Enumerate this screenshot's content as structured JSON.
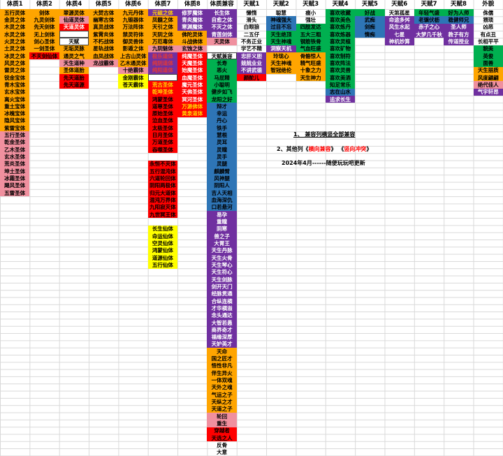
{
  "palette": {
    "o": {
      "bg": "#FFA500",
      "fg": "#000000"
    },
    "p": {
      "bg": "#F0909F",
      "fg": "#000000"
    },
    "r": {
      "bg": "#FF0000",
      "fg": "#000000"
    },
    "rw": {
      "bg": "#FF0000",
      "fg": "#FFFFFF"
    },
    "ry": {
      "bg": "#FF0000",
      "fg": "#FFD400"
    },
    "pu": {
      "bg": "#7030A0",
      "fg": "#FFFFFF"
    },
    "puy": {
      "bg": "#7030A0",
      "fg": "#FFD400"
    },
    "pur": {
      "bg": "#7030A0",
      "fg": "#E53935"
    },
    "b": {
      "bg": "#2E75B6",
      "fg": "#000000"
    },
    "g": {
      "bg": "#00B050",
      "fg": "#000000"
    },
    "y": {
      "bg": "#FFFF00",
      "fg": "#000000"
    },
    "pl": {
      "bg": "",
      "fg": "#000000"
    },
    "bx": {
      "bg": "#FFFFFF",
      "fg": "#000000",
      "border": "#404040"
    }
  },
  "grid_color": "#D9D9D9",
  "columns": [
    {
      "header": "体质1",
      "cells": [
        [
          0,
          "五行灵体",
          "o"
        ],
        [
          1,
          "金灵之体",
          "o"
        ],
        [
          2,
          "木灵之体",
          "o"
        ],
        [
          3,
          "水灵之体",
          "o"
        ],
        [
          4,
          "火灵之体",
          "o"
        ],
        [
          5,
          "土灵之体",
          "o"
        ],
        [
          6,
          "冰灵之体",
          "o"
        ],
        [
          7,
          "风灵之体",
          "o"
        ],
        [
          8,
          "雷灵之体",
          "o"
        ],
        [
          9,
          "锐金宝体",
          "o"
        ],
        [
          10,
          "青木宝体",
          "o"
        ],
        [
          11,
          "玄水宝体",
          "o"
        ],
        [
          12,
          "离火宝体",
          "o"
        ],
        [
          13,
          "重土宝体",
          "o"
        ],
        [
          14,
          "冰魄宝体",
          "o"
        ],
        [
          15,
          "隐风宝体",
          "o"
        ],
        [
          16,
          "紫雷宝体",
          "o"
        ],
        [
          17,
          "五行圣体",
          "p"
        ],
        [
          18,
          "乾金圣体",
          "p"
        ],
        [
          19,
          "乙木圣体",
          "p"
        ],
        [
          20,
          "玄水圣体",
          "p"
        ],
        [
          21,
          "荒炎圣体",
          "p"
        ],
        [
          22,
          "坤土圣体",
          "p"
        ],
        [
          23,
          "冰霜圣体",
          "p"
        ],
        [
          24,
          "飓风圣体",
          "p"
        ],
        [
          25,
          "五雷圣体",
          "p"
        ]
      ]
    },
    {
      "header": "体质2",
      "cells": [
        [
          0,
          "剑体",
          "o"
        ],
        [
          1,
          "九灵剑体",
          "o"
        ],
        [
          2,
          "先天剑体",
          "o"
        ],
        [
          3,
          "无上剑体",
          "o"
        ],
        [
          4,
          "剑心圣体",
          "o"
        ],
        [
          5,
          "一剑圣体",
          "o"
        ],
        [
          6,
          "不灭剑仙体",
          "r"
        ]
      ]
    },
    {
      "header": "体质4",
      "cells": [
        [
          0,
          "翠源灵体",
          "o"
        ],
        [
          1,
          "仙道灵体",
          "p"
        ],
        [
          2,
          "天道灵体",
          "rw"
        ],
        [
          3,
          "",
          "bx"
        ],
        [
          4,
          "天赋",
          "bx"
        ],
        [
          5,
          "无垢灵脉",
          "o"
        ],
        [
          6,
          "通灵之气",
          "o"
        ],
        [
          7,
          "天生道种",
          "p"
        ],
        [
          8,
          "圣体道胎",
          "o"
        ],
        [
          9,
          "先天道胎",
          "r"
        ],
        [
          10,
          "先天道源",
          "r"
        ]
      ]
    },
    {
      "header": "体质5",
      "cells": [
        [
          0,
          "大焚古体",
          "o"
        ],
        [
          1,
          "幽寒古体",
          "o"
        ],
        [
          2,
          "真灵战体",
          "o"
        ],
        [
          3,
          "紫霄炎体",
          "o"
        ],
        [
          4,
          "不朽战体",
          "o"
        ],
        [
          5,
          "星轨战体",
          "o"
        ],
        [
          6,
          "血凤战体",
          "o"
        ],
        [
          7,
          "龙战霸体",
          "p"
        ]
      ]
    },
    {
      "header": "体质6",
      "cells": [
        [
          0,
          "九元丹体",
          "o"
        ],
        [
          1,
          "九锻器体",
          "o"
        ],
        [
          2,
          "万法阵体",
          "o"
        ],
        [
          3,
          "禁灵符体",
          "o"
        ],
        [
          4,
          "御灵兽体",
          "o"
        ],
        [
          5,
          "影遁之体",
          "o"
        ],
        [
          6,
          "上古山灵体",
          "o"
        ],
        [
          7,
          "乙木通灵体",
          "o"
        ],
        [
          8,
          "十绝霸体",
          "p"
        ],
        [
          9,
          "金刚霸体",
          "y"
        ],
        [
          10,
          "苍天霸体",
          "y"
        ]
      ]
    },
    {
      "header": "体质7",
      "cells": [
        [
          0,
          "元磁之体",
          "puy"
        ],
        [
          1,
          "凤髓之体",
          "o"
        ],
        [
          2,
          "天引之体",
          "o"
        ],
        [
          3,
          "天阴之体",
          "o"
        ],
        [
          4,
          "万厄毒体",
          "o"
        ],
        [
          5,
          "九阴魅体",
          "p"
        ],
        [
          6,
          "极乐道体",
          "pur"
        ],
        [
          7,
          "纯阴道体",
          "pur"
        ],
        [
          8,
          "纯阳道体",
          "pur"
        ],
        [
          9,
          "",
          "bx"
        ],
        [
          10,
          "荒古圣体",
          "ry"
        ],
        [
          11,
          "乾坤圣体",
          "ry"
        ],
        [
          12,
          "鸿蒙圣体",
          "r"
        ],
        [
          13,
          "道尊圣体",
          "r"
        ],
        [
          14,
          "原始圣体",
          "r"
        ],
        [
          15,
          "泣血圣体",
          "r"
        ],
        [
          16,
          "太极圣体",
          "r"
        ],
        [
          17,
          "日月圣体",
          "r"
        ],
        [
          18,
          "万道圣体",
          "r"
        ],
        [
          19,
          "吞噬圣体",
          "r"
        ],
        [
          21,
          "永恒不灭体",
          "r"
        ],
        [
          22,
          "五行混沌体",
          "r"
        ],
        [
          23,
          "六道轮回体",
          "r"
        ],
        [
          24,
          "阴阳两极体",
          "r"
        ],
        [
          25,
          "归元大道体",
          "r"
        ],
        [
          26,
          "混沌万界体",
          "r"
        ],
        [
          27,
          "九阳寂灭体",
          "r"
        ],
        [
          28,
          "九世冥王体",
          "r"
        ],
        [
          30,
          "长生仙体",
          "y"
        ],
        [
          31,
          "命运仙体",
          "y"
        ],
        [
          32,
          "空灵仙体",
          "y"
        ],
        [
          33,
          "鸿蒙仙体",
          "y"
        ],
        [
          34,
          "道源仙体",
          "y"
        ],
        [
          35,
          "五行仙体",
          "y"
        ]
      ]
    },
    {
      "header": "体质8",
      "cells": [
        [
          0,
          "修罗魔体",
          "pu"
        ],
        [
          1,
          "青炎魔体",
          "pu"
        ],
        [
          2,
          "寒渊魔体",
          "pu"
        ],
        [
          3,
          "佛陀灵体",
          "o"
        ],
        [
          4,
          "斗战佛体",
          "o"
        ],
        [
          5,
          "玄蚀之体",
          "p"
        ],
        [
          6,
          "纯魔圣体",
          "rw"
        ],
        [
          7,
          "天魔圣体",
          "rw"
        ],
        [
          8,
          "始魔圣体",
          "rw"
        ],
        [
          9,
          "血魔圣体",
          "rw"
        ],
        [
          10,
          "魔元圣体",
          "rw"
        ],
        [
          11,
          "天佛圣体",
          "rw"
        ],
        [
          12,
          "冥河圣体",
          "rw"
        ],
        [
          13,
          "万源佛体",
          "ry"
        ],
        [
          14,
          "黄泉道体",
          "ry"
        ]
      ]
    },
    {
      "header": "体质兼容",
      "cells": [
        [
          0,
          "长生体",
          "pu"
        ],
        [
          1,
          "自愈之体",
          "pu"
        ],
        [
          2,
          "不灭之体",
          "pu"
        ],
        [
          3,
          "青莲剑体",
          "pu"
        ],
        [
          4,
          "天灵体",
          "p"
        ],
        [
          6,
          "天赋兼容",
          "bx"
        ],
        [
          7,
          "长寿",
          "g"
        ],
        [
          8,
          "恶火",
          "g"
        ],
        [
          9,
          "马屁精",
          "g"
        ],
        [
          10,
          "小聪明",
          "g"
        ],
        [
          11,
          "健步如飞",
          "g"
        ],
        [
          12,
          "龙阳之好",
          "g"
        ],
        [
          13,
          "辩才",
          "b"
        ],
        [
          14,
          "幸运",
          "b"
        ],
        [
          15,
          "丹心",
          "b"
        ],
        [
          16,
          "铁手",
          "b"
        ],
        [
          17,
          "慧根",
          "b"
        ],
        [
          18,
          "灵耳",
          "b"
        ],
        [
          19,
          "灵瞳",
          "b"
        ],
        [
          20,
          "灵手",
          "b"
        ],
        [
          21,
          "灵腿",
          "b"
        ],
        [
          22,
          "麒麟臂",
          "b"
        ],
        [
          23,
          "风神腿",
          "b"
        ],
        [
          24,
          "阴阳人",
          "b"
        ],
        [
          25,
          "吉人天相",
          "b"
        ],
        [
          26,
          "血海深仇",
          "b"
        ],
        [
          27,
          "口若悬河",
          "b"
        ],
        [
          28,
          "易孕",
          "pu"
        ],
        [
          29,
          "重瞳",
          "pu"
        ],
        [
          30,
          "阴寒",
          "pu"
        ],
        [
          31,
          "兽之子",
          "pu"
        ],
        [
          32,
          "大胃王",
          "pu"
        ],
        [
          33,
          "天生丹脉",
          "pu"
        ],
        [
          34,
          "天生火骨",
          "pu"
        ],
        [
          35,
          "天生琴心",
          "pu"
        ],
        [
          36,
          "天生符心",
          "pu"
        ],
        [
          37,
          "天生剑脉",
          "pu"
        ],
        [
          38,
          "剑开天门",
          "pu"
        ],
        [
          39,
          "经脉贯通",
          "pu"
        ],
        [
          40,
          "合纵连横",
          "pu"
        ],
        [
          41,
          "才华横溢",
          "pu"
        ],
        [
          42,
          "念头通达",
          "pu"
        ],
        [
          43,
          "大智若愚",
          "pu"
        ],
        [
          44,
          "商界奇才",
          "pu"
        ],
        [
          45,
          "福缘深厚",
          "pu"
        ],
        [
          46,
          "天妒英才",
          "pu"
        ],
        [
          47,
          "天命",
          "o"
        ],
        [
          48,
          "国之匠才",
          "o"
        ],
        [
          49,
          "悟性非凡",
          "o"
        ],
        [
          50,
          "伴生异火",
          "o"
        ],
        [
          51,
          "一体双魂",
          "o"
        ],
        [
          52,
          "天外之魂",
          "o"
        ],
        [
          53,
          "气运之子",
          "o"
        ],
        [
          54,
          "天纵之才",
          "o"
        ],
        [
          55,
          "天道之子",
          "o"
        ],
        [
          56,
          "轮回",
          "p"
        ],
        [
          57,
          "重生",
          "p"
        ],
        [
          58,
          "穿越者",
          "r"
        ],
        [
          59,
          "天选之人",
          "r"
        ],
        [
          60,
          "反骨",
          "pl"
        ],
        [
          61,
          "大意",
          "pl"
        ]
      ]
    },
    {
      "header": "天赋1",
      "cells": [
        [
          0,
          "懒惰",
          "pl"
        ],
        [
          1,
          "滑头",
          "pl"
        ],
        [
          2,
          "白眼狼",
          "pl"
        ],
        [
          3,
          "二五仔",
          "pl"
        ],
        [
          4,
          "不务正业",
          "pl"
        ],
        [
          5,
          "学艺不精",
          "pl"
        ],
        [
          6,
          "忠肝义胆",
          "pu"
        ],
        [
          7,
          "兢兢业业",
          "pu"
        ],
        [
          8,
          "不讲武德",
          "pu"
        ],
        [
          9,
          "颜酡儿",
          "r"
        ]
      ]
    },
    {
      "header": "天赋2",
      "cells": [
        [
          0,
          "聪慧",
          "pl"
        ],
        [
          1,
          "神魂强大",
          "b"
        ],
        [
          2,
          "过目不忘",
          "b"
        ],
        [
          3,
          "天生绝顶",
          "g"
        ],
        [
          4,
          "天生神魂",
          "g"
        ],
        [
          5,
          "洞察天机",
          "pu"
        ],
        [
          6,
          "玲珑心",
          "o"
        ],
        [
          7,
          "天生神魂",
          "o"
        ],
        [
          8,
          "智冠绝伦",
          "o"
        ]
      ]
    },
    {
      "header": "天赋3",
      "cells": [
        [
          0,
          "瘦小",
          "pl"
        ],
        [
          1,
          "强壮",
          "pl"
        ],
        [
          2,
          "四肢发达",
          "g"
        ],
        [
          3,
          "五大三粗",
          "g"
        ],
        [
          4,
          "钢筋铁骨",
          "g"
        ],
        [
          5,
          "气血旺盛",
          "g"
        ],
        [
          6,
          "骨骼惊人",
          "o"
        ],
        [
          7,
          "精气旺盛",
          "o"
        ],
        [
          8,
          "十象之力",
          "o"
        ],
        [
          9,
          "天生神力",
          "o"
        ]
      ]
    },
    {
      "header": "天赋4",
      "cells": [
        [
          0,
          "喜欢收藏",
          "g"
        ],
        [
          1,
          "喜欢美色",
          "g"
        ],
        [
          2,
          "喜欢炼丹",
          "g"
        ],
        [
          3,
          "喜欢炼器",
          "g"
        ],
        [
          4,
          "喜欢灵植",
          "g"
        ],
        [
          5,
          "喜欢矿物",
          "g"
        ],
        [
          6,
          "喜欢制符",
          "g"
        ],
        [
          7,
          "喜欢阵法",
          "g"
        ],
        [
          8,
          "喜欢灵兽",
          "g"
        ],
        [
          9,
          "喜欢美酒",
          "g"
        ],
        [
          10,
          "知足常乐",
          "g"
        ],
        [
          11,
          "志在山水",
          "b"
        ],
        [
          12,
          "追求长生",
          "pu"
        ]
      ]
    },
    {
      "header": "天赋5",
      "cells": [
        [
          0,
          "好战",
          "g"
        ],
        [
          1,
          "武痴",
          "b"
        ],
        [
          2,
          "剑痴",
          "b"
        ],
        [
          3,
          "情痴",
          "b"
        ]
      ]
    },
    {
      "header": "天赋6",
      "cells": [
        [
          0,
          "天煞孤星",
          "pl"
        ],
        [
          1,
          "命途多舛",
          "pu"
        ],
        [
          2,
          "风生水起",
          "pu"
        ],
        [
          3,
          "七星",
          "pu"
        ],
        [
          4,
          "神机妙算",
          "pu"
        ]
      ]
    },
    {
      "header": "天赋7",
      "cells": [
        [
          0,
          "年轻气盛",
          "g"
        ],
        [
          1,
          "老骥伏枥",
          "b"
        ],
        [
          2,
          "赤子之心",
          "pu"
        ],
        [
          3,
          "大梦几千秋",
          "pu"
        ]
      ]
    },
    {
      "header": "天赋8",
      "cells": [
        [
          0,
          "好为人师",
          "g"
        ],
        [
          1,
          "稳健师兄",
          "b"
        ],
        [
          2,
          "圣人师",
          "pu"
        ],
        [
          3,
          "教子有方",
          "pu"
        ],
        [
          4,
          "传道授业",
          "pu"
        ]
      ]
    },
    {
      "header": "外貌",
      "cells": [
        [
          0,
          "侏儒",
          "pl"
        ],
        [
          1,
          "猥琐",
          "pl"
        ],
        [
          2,
          "凶恶",
          "pl"
        ],
        [
          3,
          "有点丑",
          "pl"
        ],
        [
          4,
          "长相平平",
          "pl"
        ],
        [
          5,
          "貌美",
          "g"
        ],
        [
          6,
          "英俊",
          "g"
        ],
        [
          7,
          "面善",
          "g"
        ],
        [
          8,
          "天生丽质",
          "o"
        ],
        [
          9,
          "风度翩翩",
          "o"
        ],
        [
          10,
          "绝代佳人",
          "p"
        ],
        [
          11,
          "气宇轩昂",
          "pu"
        ]
      ]
    }
  ],
  "notes": {
    "line1": "1、 兼容列横竖全部兼容",
    "line2_prefix": "2、其他列",
    "line2_open": "《",
    "line2_red1": "横向兼容",
    "line2_close": "》",
    "line2_sep": " ",
    "line2_red2": "竖向冲突",
    "line3": "2024年4月------随便玩玩吧更新"
  }
}
